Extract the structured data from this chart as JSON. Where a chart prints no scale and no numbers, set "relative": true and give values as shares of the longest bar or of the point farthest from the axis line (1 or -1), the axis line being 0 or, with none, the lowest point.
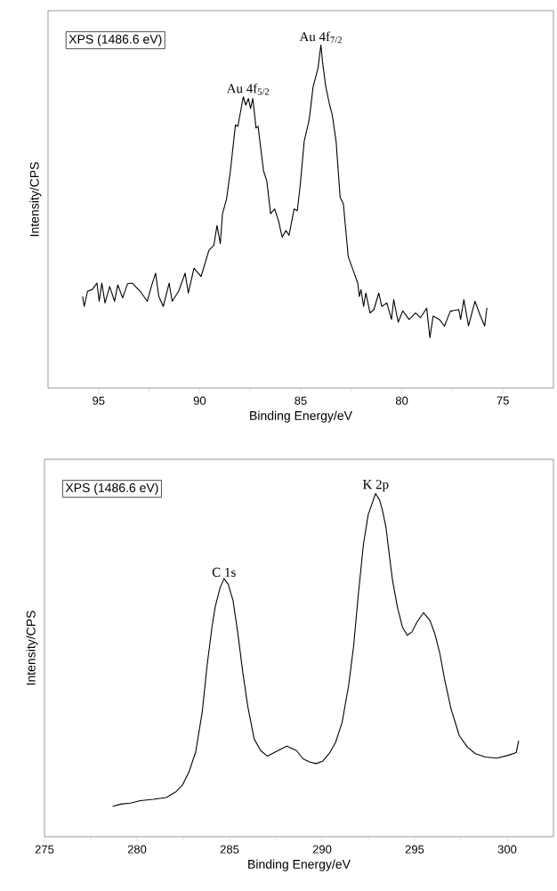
{
  "chart_data": [
    {
      "type": "line",
      "relative": true,
      "xlabel": "Binding Energy/eV",
      "ylabel": "Intensity/CPS",
      "xlim": [
        97.5,
        72.5
      ],
      "xticks": [
        95,
        90,
        85,
        80,
        75
      ],
      "x": [
        95.79,
        95.71,
        95.55,
        95.32,
        95.08,
        94.97,
        94.84,
        94.68,
        94.45,
        94.21,
        94.05,
        93.81,
        93.57,
        93.34,
        92.94,
        92.59,
        92.39,
        92.18,
        92.02,
        91.8,
        91.51,
        91.36,
        91.04,
        90.72,
        90.56,
        90.28,
        89.93,
        89.54,
        89.3,
        89.14,
        88.98,
        88.87,
        88.67,
        88.48,
        88.23,
        88.11,
        87.84,
        87.72,
        87.59,
        87.48,
        87.37,
        87.21,
        87.11,
        86.84,
        86.68,
        86.49,
        86.29,
        86.1,
        85.92,
        85.73,
        85.58,
        85.33,
        85.17,
        85.02,
        84.83,
        84.62,
        84.55,
        84.39,
        84.15,
        84.0,
        83.92,
        83.76,
        83.57,
        83.44,
        83.25,
        83.05,
        82.89,
        82.65,
        82.41,
        82.18,
        82.1,
        82.02,
        81.89,
        81.78,
        81.57,
        81.38,
        81.14,
        80.99,
        80.74,
        80.51,
        80.4,
        80.18,
        79.95,
        79.64,
        79.32,
        79.08,
        78.77,
        78.61,
        78.45,
        78.14,
        77.89,
        77.6,
        77.18,
        77.09,
        76.93,
        76.7,
        76.38,
        76.11,
        75.9,
        75.79
      ],
      "values": [
        0.267,
        0.238,
        0.282,
        0.287,
        0.306,
        0.253,
        0.306,
        0.248,
        0.296,
        0.253,
        0.301,
        0.263,
        0.304,
        0.306,
        0.282,
        0.253,
        0.296,
        0.335,
        0.267,
        0.238,
        0.306,
        0.253,
        0.282,
        0.335,
        0.277,
        0.349,
        0.325,
        0.402,
        0.416,
        0.474,
        0.421,
        0.508,
        0.551,
        0.633,
        0.767,
        0.763,
        0.849,
        0.825,
        0.844,
        0.815,
        0.844,
        0.758,
        0.763,
        0.633,
        0.604,
        0.508,
        0.522,
        0.488,
        0.44,
        0.459,
        0.445,
        0.522,
        0.517,
        0.594,
        0.719,
        0.772,
        0.796,
        0.878,
        0.931,
        1.0,
        0.95,
        0.878,
        0.825,
        0.796,
        0.719,
        0.556,
        0.537,
        0.383,
        0.344,
        0.306,
        0.267,
        0.287,
        0.238,
        0.277,
        0.219,
        0.229,
        0.277,
        0.238,
        0.248,
        0.2,
        0.258,
        0.192,
        0.225,
        0.2,
        0.219,
        0.205,
        0.233,
        0.147,
        0.21,
        0.2,
        0.181,
        0.224,
        0.229,
        0.2,
        0.258,
        0.181,
        0.253,
        0.21,
        0.181,
        0.234
      ],
      "annotations": [
        "XPS (1486.6 eV)",
        {
          "text": "Au 4f$_{5/2}$",
          "x": 87.6,
          "y": 0.849
        },
        {
          "text": "Au 4f$_{7/2}$",
          "x": 84.0,
          "y": 1.0
        }
      ]
    },
    {
      "type": "line",
      "relative": true,
      "xlabel": "Binding Energy/eV",
      "ylabel": "Intensity/CPS",
      "xlim": [
        275,
        302.5
      ],
      "xticks": [
        275,
        280,
        285,
        290,
        295,
        300
      ],
      "x": [
        278.68,
        279.12,
        279.65,
        280.18,
        280.88,
        281.58,
        282.11,
        282.46,
        282.81,
        283.17,
        283.52,
        283.78,
        284.05,
        284.22,
        284.49,
        284.7,
        284.93,
        285.19,
        285.45,
        285.72,
        285.98,
        286.33,
        286.68,
        287.04,
        287.48,
        288.09,
        288.62,
        288.97,
        289.32,
        289.67,
        290.03,
        290.38,
        290.73,
        291.08,
        291.43,
        291.7,
        291.96,
        292.23,
        292.49,
        292.67,
        292.89,
        293.11,
        293.28,
        293.46,
        293.63,
        293.81,
        294.07,
        294.34,
        294.6,
        294.86,
        295.13,
        295.48,
        295.83,
        296.09,
        296.36,
        296.62,
        296.97,
        297.41,
        297.85,
        298.29,
        298.82,
        299.44,
        300.05,
        300.49,
        300.62
      ],
      "values": [
        0.088,
        0.095,
        0.098,
        0.105,
        0.109,
        0.114,
        0.131,
        0.151,
        0.189,
        0.247,
        0.362,
        0.496,
        0.611,
        0.669,
        0.726,
        0.752,
        0.736,
        0.688,
        0.592,
        0.477,
        0.381,
        0.285,
        0.251,
        0.235,
        0.247,
        0.264,
        0.251,
        0.227,
        0.218,
        0.213,
        0.22,
        0.242,
        0.275,
        0.333,
        0.439,
        0.554,
        0.707,
        0.851,
        0.938,
        0.966,
        1.0,
        0.981,
        0.947,
        0.899,
        0.822,
        0.746,
        0.669,
        0.611,
        0.587,
        0.597,
        0.626,
        0.653,
        0.63,
        0.592,
        0.535,
        0.458,
        0.372,
        0.295,
        0.261,
        0.242,
        0.232,
        0.229,
        0.237,
        0.245,
        0.28
      ],
      "annotations": [
        "XPS (1486.6 eV)",
        {
          "text": "C 1s",
          "x": 284.7,
          "y": 0.752
        },
        {
          "text": "K 2p",
          "x": 292.9,
          "y": 1.0
        }
      ]
    }
  ]
}
